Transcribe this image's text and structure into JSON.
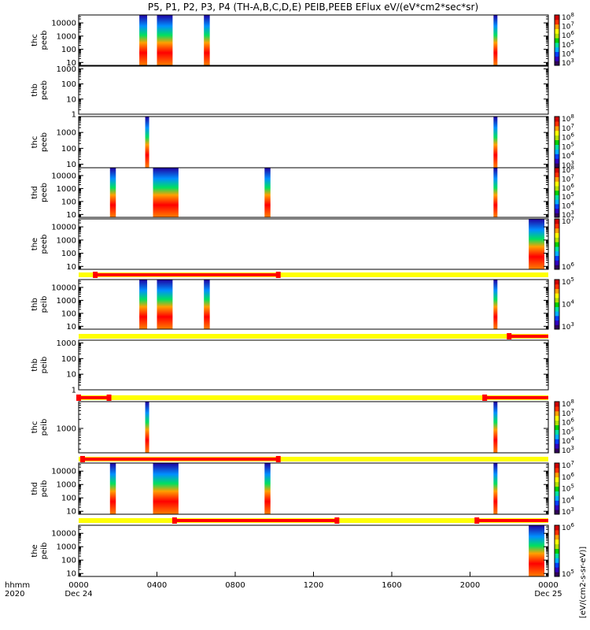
{
  "chart_data": {
    "type": "heatmap",
    "title": "P5, P1, P2, P3, P4 (TH-A,B,C,D,E) PEIB,PEEB EFlux eV/(eV*cm2*sec*sr)",
    "time_axis": {
      "row_labels": [
        "hhmm",
        "2020"
      ],
      "range_hours": [
        0,
        24
      ],
      "ticks": [
        {
          "label": "0000",
          "date": "Dec 24",
          "hour": 0
        },
        {
          "label": "0400",
          "date": "",
          "hour": 4
        },
        {
          "label": "0800",
          "date": "",
          "hour": 8
        },
        {
          "label": "1200",
          "date": "",
          "hour": 12
        },
        {
          "label": "1600",
          "date": "",
          "hour": 16
        },
        {
          "label": "2000",
          "date": "",
          "hour": 20
        },
        {
          "label": "0000",
          "date": "Dec 25",
          "hour": 24
        }
      ]
    },
    "panels": [
      {
        "name": "thc peeb",
        "ylabel": [
          "thc",
          "peeb"
        ],
        "ylog": true,
        "yrange": [
          6,
          40000
        ],
        "yticks": [
          10,
          100,
          1000,
          10000
        ],
        "cb_ticks": [
          "10^3",
          "10^4",
          "10^5",
          "10^6",
          "10^7",
          "10^8"
        ],
        "colorbar_label": "",
        "data_hours": [
          [
            3.1,
            3.5
          ],
          [
            4.0,
            4.8
          ],
          [
            6.4,
            6.7
          ],
          [
            21.2,
            21.4
          ]
        ]
      },
      {
        "name": "thb peeb",
        "ylabel": [
          "thb",
          "peeb"
        ],
        "ylog": true,
        "yrange": [
          1,
          1500
        ],
        "yticks": [
          1,
          10,
          100,
          1000
        ],
        "cb_ticks": [],
        "colorbar_label": "",
        "data_hours": []
      },
      {
        "name": "thc peeb",
        "ylabel": [
          "thc",
          "peeb"
        ],
        "ylog": true,
        "yrange": [
          6,
          10000
        ],
        "yticks": [
          10,
          100,
          1000
        ],
        "cb_ticks": [
          "10^3",
          "10^4",
          "10^5",
          "10^6",
          "10^7",
          "10^8"
        ],
        "colorbar_label": "",
        "data_hours": [
          [
            3.4,
            3.6
          ],
          [
            21.2,
            21.4
          ]
        ]
      },
      {
        "name": "thd peeb",
        "ylabel": [
          "thd",
          "peeb"
        ],
        "ylog": true,
        "yrange": [
          6,
          40000
        ],
        "yticks": [
          10,
          100,
          1000,
          10000
        ],
        "cb_ticks": [
          "10^3",
          "10^4",
          "10^5",
          "10^6",
          "10^7",
          "10^8"
        ],
        "colorbar_label": "",
        "data_hours": [
          [
            1.6,
            1.9
          ],
          [
            3.8,
            5.1
          ],
          [
            9.5,
            9.8
          ],
          [
            21.2,
            21.4
          ]
        ]
      },
      {
        "name": "the peeb",
        "ylabel": [
          "the",
          "peeb"
        ],
        "ylog": true,
        "yrange": [
          6,
          40000
        ],
        "yticks": [
          10,
          100,
          1000,
          10000
        ],
        "cb_ticks": [
          "10^6",
          "10^7"
        ],
        "colorbar_label": "",
        "data_hours": [
          [
            23.0,
            23.8
          ]
        ]
      },
      {
        "name": "thb peib",
        "ylabel": [
          "thb",
          "peib"
        ],
        "ylog": true,
        "yrange": [
          6,
          40000
        ],
        "yticks": [
          10,
          100,
          1000,
          10000
        ],
        "cb_ticks": [
          "10^3",
          "10^4",
          "10^5"
        ],
        "colorbar_label": "",
        "data_hours": [
          [
            3.1,
            3.5
          ],
          [
            4.0,
            4.8
          ],
          [
            6.4,
            6.7
          ],
          [
            21.2,
            21.4
          ]
        ]
      },
      {
        "name": "thb peib",
        "ylabel": [
          "thb",
          "peib"
        ],
        "ylog": true,
        "yrange": [
          1,
          1500
        ],
        "yticks": [
          1,
          10,
          100,
          1000
        ],
        "cb_ticks": [],
        "colorbar_label": "",
        "data_hours": []
      },
      {
        "name": "thc peib",
        "ylabel": [
          "thc",
          "peib"
        ],
        "ylog": true,
        "yrange": [
          150,
          8000
        ],
        "yticks": [
          1000
        ],
        "cb_ticks": [
          "10^3",
          "10^4",
          "10^5",
          "10^6",
          "10^7",
          "10^8"
        ],
        "colorbar_label": "",
        "data_hours": [
          [
            3.4,
            3.6
          ],
          [
            21.2,
            21.4
          ]
        ]
      },
      {
        "name": "thd peib",
        "ylabel": [
          "thd",
          "peib"
        ],
        "ylog": true,
        "yrange": [
          6,
          40000
        ],
        "yticks": [
          10,
          100,
          1000,
          10000
        ],
        "cb_ticks": [
          "10^3",
          "10^4",
          "10^5",
          "10^6",
          "10^7"
        ],
        "colorbar_label": "",
        "data_hours": [
          [
            1.6,
            1.9
          ],
          [
            3.8,
            5.1
          ],
          [
            9.5,
            9.8
          ],
          [
            21.2,
            21.4
          ]
        ]
      },
      {
        "name": "the peib",
        "ylabel": [
          "the",
          "peib"
        ],
        "ylog": true,
        "yrange": [
          6,
          40000
        ],
        "yticks": [
          10,
          100,
          1000,
          10000
        ],
        "cb_ticks": [
          "10^5",
          "10^6"
        ],
        "colorbar_label": "[eV/(cm2-s-sr-eV)]",
        "data_hours": [
          [
            23.0,
            23.8
          ]
        ]
      }
    ],
    "mode_bars": [
      {
        "after_panel": 4,
        "segments": [
          [
            1.7,
            20.4
          ]
        ]
      },
      {
        "after_panel": 5,
        "segments": [
          [
            44.0,
            48.0
          ]
        ]
      },
      {
        "after_panel": 6,
        "segments": [
          [
            0,
            3.1
          ],
          [
            41.5,
            48.0
          ]
        ]
      },
      {
        "after_panel": 7,
        "segments": [
          [
            0.4,
            20.4
          ]
        ]
      },
      {
        "after_panel": 8,
        "segments": [
          [
            9.8,
            26.4
          ],
          [
            40.7,
            48.0
          ]
        ]
      }
    ],
    "mode_bar_colors": {
      "background": "#ffff00",
      "segment": "#ff0000"
    },
    "colormap": "rainbow"
  }
}
